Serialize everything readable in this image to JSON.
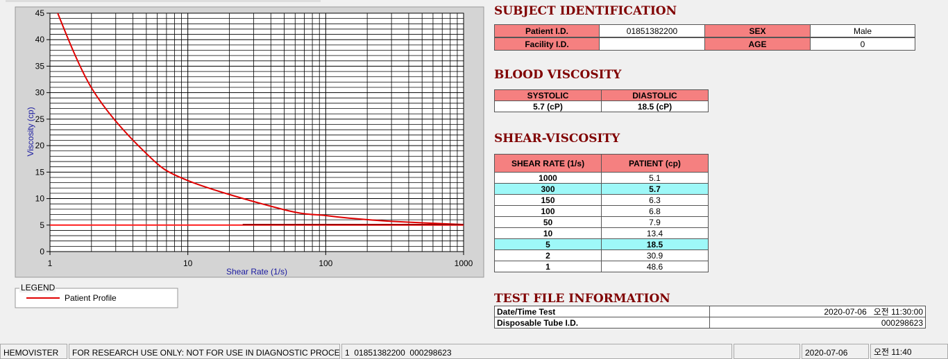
{
  "chart_data": {
    "type": "line",
    "xlabel": "Shear Rate (1/s)",
    "ylabel": "Viscosity (cp)",
    "xscale": "log",
    "xlim": [
      1,
      1000
    ],
    "ylim": [
      0,
      45
    ],
    "xticks": [
      1,
      10,
      100,
      1000
    ],
    "yticks": [
      0,
      5,
      10,
      15,
      20,
      25,
      30,
      35,
      40,
      45
    ],
    "x_minor_grid": [
      2,
      3,
      4,
      5,
      6,
      7,
      8,
      9,
      20,
      30,
      40,
      50,
      60,
      70,
      80,
      90,
      200,
      300,
      400,
      500,
      600,
      700,
      800,
      900
    ],
    "y_minor_grid": [
      1,
      2,
      3,
      4,
      6,
      7,
      8,
      9,
      11,
      12,
      13,
      14,
      16,
      17,
      18,
      19,
      21,
      22,
      23,
      24,
      26,
      27,
      28,
      29,
      31,
      32,
      33,
      34,
      36,
      37,
      38,
      39,
      41,
      42,
      43,
      44
    ],
    "grid": true,
    "legend_title": "LEGEND",
    "series": [
      {
        "name": "Patient Profile",
        "color": "#e00000",
        "x": [
          1,
          2,
          5,
          10,
          50,
          100,
          150,
          300,
          1000
        ],
        "values": [
          48.6,
          30.9,
          18.5,
          13.4,
          7.9,
          6.8,
          6.3,
          5.7,
          5.1
        ]
      },
      {
        "color": "#ff1a1a",
        "x": [
          1,
          1000
        ],
        "values": [
          5,
          5
        ]
      },
      {
        "color": "#a00000",
        "x": [
          25,
          1000
        ],
        "values": [
          5.1,
          5.1
        ]
      }
    ]
  },
  "subject_identification": {
    "title": "SUBJECT IDENTIFICATION",
    "rows": [
      {
        "label": "Patient I.D.",
        "value": "01851382200",
        "label2": "SEX",
        "value2": "Male"
      },
      {
        "label": "Facility I.D.",
        "label2": "AGE",
        "value2": 0
      }
    ]
  },
  "blood_viscosity": {
    "title": "BLOOD VISCOSITY",
    "headers": [
      "SYSTOLIC",
      "DIASTOLIC"
    ],
    "values": [
      "5.7 (cP)",
      "18.5 (cP)"
    ]
  },
  "shear_viscosity": {
    "title": "SHEAR-VISCOSITY",
    "headers": [
      "SHEAR RATE (1/s)",
      "PATIENT (cp)"
    ],
    "rows": [
      [
        1000,
        5.1
      ],
      [
        300,
        5.7
      ],
      [
        150,
        6.3
      ],
      [
        100,
        6.8
      ],
      [
        50,
        7.9
      ],
      [
        10,
        13.4
      ],
      [
        5,
        18.5
      ],
      [
        2,
        30.9
      ],
      [
        1,
        48.6
      ]
    ],
    "highlighted_rows": [
      1,
      6
    ]
  },
  "test_file": {
    "title": "TEST FILE INFORMATION",
    "rows": [
      [
        "Date/Time Test",
        "2020-07-06   오전 11:30:00"
      ],
      [
        "Disposable Tube I.D.",
        "000298623"
      ]
    ]
  },
  "status_bar": [
    "HEMOVISTER",
    "FOR RESEARCH USE ONLY: NOT FOR USE IN DIAGNOSTIC PROCEDURES",
    "1  01851382200  000298623",
    "2020-07-06",
    "오전 11:40"
  ]
}
